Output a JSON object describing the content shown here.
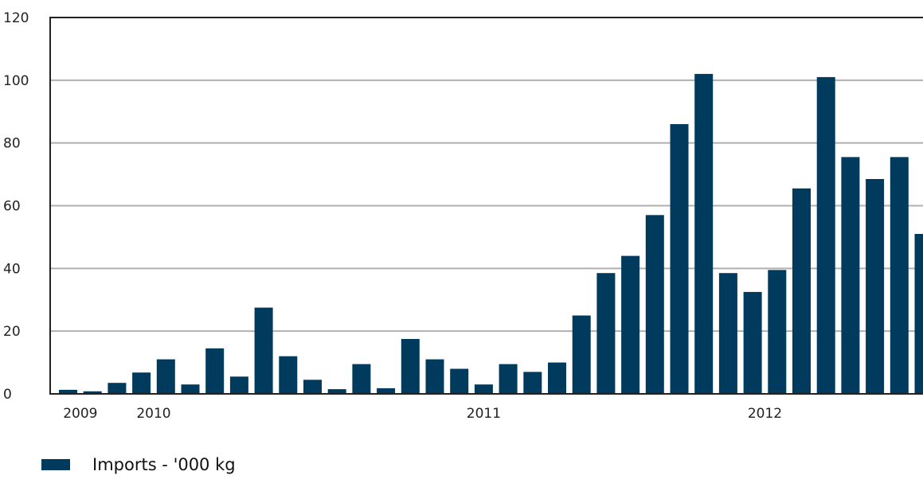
{
  "chart_data": {
    "type": "bar",
    "color": "#003a5c",
    "grid_color": "#b0b0b0",
    "grid": true,
    "ylim": [
      0,
      120
    ],
    "yticks": [
      0,
      20,
      40,
      60,
      80,
      100,
      120
    ],
    "ytick_labels": [
      "0",
      "20",
      "40",
      "60",
      "80",
      "100",
      "120"
    ],
    "x_labels": [
      {
        "text": "2009",
        "at": 0.5
      },
      {
        "text": "2010",
        "at": 3.5
      },
      {
        "text": "2011",
        "at": 17
      },
      {
        "text": "2012",
        "at": 28.5
      }
    ],
    "values": [
      1.3,
      0.8,
      3.5,
      6.8,
      11,
      3,
      14.5,
      5.5,
      27.5,
      12,
      4.5,
      1.5,
      9.5,
      1.8,
      17.5,
      11,
      8,
      3,
      9.5,
      7,
      10,
      25,
      38.5,
      44,
      57,
      86,
      102,
      38.5,
      32.5,
      39.5,
      65.5,
      101,
      75.5,
      68.5,
      75.5,
      51
    ],
    "series": [
      {
        "name": "Imports - '000 kg"
      }
    ],
    "legend": "bottom-left"
  }
}
